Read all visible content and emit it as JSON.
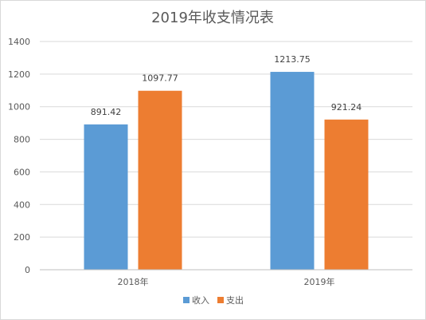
{
  "chart_data": {
    "type": "bar",
    "title": "2019年收支情况表",
    "categories": [
      "2018年",
      "2019年"
    ],
    "series": [
      {
        "name": "收入",
        "values": [
          891.42,
          1213.75
        ],
        "color": "#5b9bd5"
      },
      {
        "name": "支出",
        "values": [
          1097.77,
          921.24
        ],
        "color": "#ed7d31"
      }
    ],
    "xlabel": "",
    "ylabel": "",
    "ylim": [
      0,
      1400
    ],
    "yticks": [
      0,
      200,
      400,
      600,
      800,
      1000,
      1200,
      1400
    ],
    "grid": true,
    "legend": "bottom",
    "data_labels": [
      "891.42",
      "1097.77",
      "1213.75",
      "921.24"
    ]
  }
}
